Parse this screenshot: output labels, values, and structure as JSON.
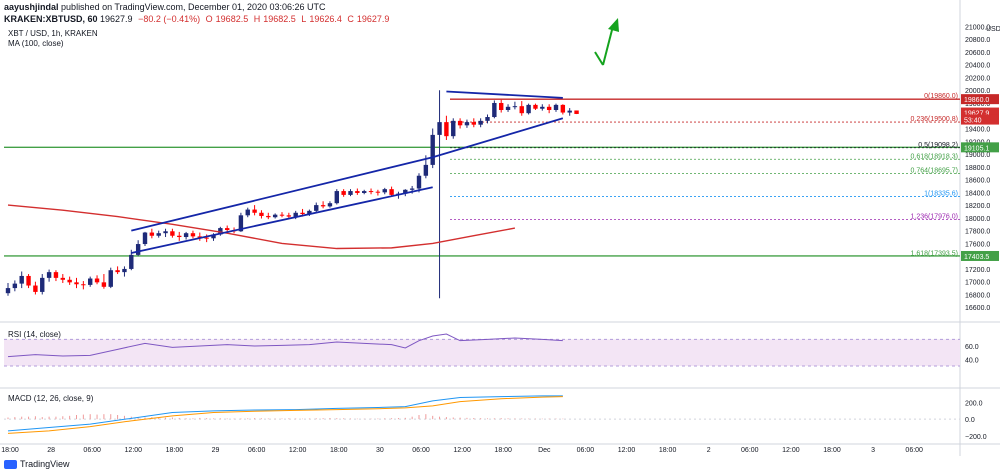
{
  "header": {
    "publisher": "aayushjindal",
    "published_text": "published on TradingView.com, December 01, 2020 03:06:26 UTC",
    "symbol": "KRAKEN:XBTUSD, 60",
    "last": "19627.9",
    "change": "−80.2 (−0.41%)",
    "ohlc": [
      "19682.5",
      "19682.5",
      "19626.4",
      "19627.9"
    ]
  },
  "legend": {
    "instrument": "XBT / USD, 1h, KRAKEN",
    "ma_label": "MA (100, close)",
    "rsi_label": "RSI (14, close)",
    "macd_label": "MACD (12, 26, close, 9)"
  },
  "footer": {
    "brand": "TradingView"
  },
  "colors": {
    "up": "#1e2a78",
    "down": "#ff0000",
    "ma": "#d32f2f",
    "trend": "#1426a8",
    "fib_red": "#c62828",
    "fib_green": "#43a047",
    "arrow": "#15a31e",
    "rsi_band": "#f3e5f5"
  },
  "price_axis": {
    "min": 16400,
    "max": 21100,
    "ticks": [
      "21000.0",
      "20800.0",
      "20600.0",
      "20400.0",
      "20200.0",
      "20000.0",
      "19800.0",
      "19600.0",
      "19400.0",
      "19200.0",
      "19000.0",
      "18800.0",
      "18600.0",
      "18400.0",
      "18200.0",
      "18000.0",
      "17800.0",
      "17600.0",
      "17400.0",
      "17200.0",
      "17000.0",
      "16800.0",
      "16600.0"
    ],
    "tick_values": [
      21000,
      20800,
      20600,
      20400,
      20200,
      20000,
      19800,
      19600,
      19400,
      19200,
      19000,
      18800,
      18600,
      18400,
      18200,
      18000,
      17800,
      17600,
      17400,
      17200,
      17000,
      16800,
      16600
    ],
    "tags": [
      {
        "text": "19860.0",
        "value": 19860,
        "color": "#c62828"
      },
      {
        "text": "19627.9",
        "value": 19650,
        "color": "#d32f2f"
      },
      {
        "text": "53:40",
        "value": 19540,
        "color": "#d32f2f"
      },
      {
        "text": "19105.1",
        "value": 19105,
        "color": "#43a047"
      },
      {
        "text": "17403.5",
        "value": 17403,
        "color": "#43a047"
      }
    ]
  },
  "rsi_axis": {
    "ticks": [
      "60.0",
      "40.0"
    ],
    "tick_values": [
      60,
      40
    ]
  },
  "macd_axis": {
    "ticks": [
      "200.0",
      "0.0",
      "−200.0"
    ],
    "tick_values": [
      200,
      0,
      -200
    ]
  },
  "fibonacci": [
    {
      "label": "0(19860.0)",
      "value": 19860,
      "color": "#c62828"
    },
    {
      "label": "0.236(19500.8)",
      "value": 19500.8,
      "color": "#c62828"
    },
    {
      "label": "0.5(19098.2)",
      "value": 19098.2,
      "color": "#131722"
    },
    {
      "label": "0.618(18918.3)",
      "value": 18918.3,
      "color": "#43a047"
    },
    {
      "label": "0.764(18695.7)",
      "value": 18695.7,
      "color": "#43a047"
    },
    {
      "label": "1(18335.6)",
      "value": 18335.6,
      "color": "#2196f3"
    },
    {
      "label": "1.236(17976.0)",
      "value": 17976,
      "color": "#9c27b0"
    },
    {
      "label": "1.618(17393.5)",
      "value": 17393.5,
      "color": "#43a047"
    }
  ],
  "horizontal_lines": [
    19860,
    19105,
    17403.5
  ],
  "time_axis": {
    "labels": [
      "18:00",
      "28",
      "06:00",
      "12:00",
      "18:00",
      "29",
      "06:00",
      "12:00",
      "18:00",
      "30",
      "06:00",
      "12:00",
      "18:00",
      "Dec",
      "06:00",
      "12:00",
      "18:00",
      "2",
      "06:00",
      "12:00",
      "18:00",
      "3",
      "06:00"
    ]
  },
  "chart_data": {
    "type": "candlestick",
    "timeframe": "1h",
    "candles": [
      {
        "o": 16820,
        "h": 16980,
        "l": 16780,
        "c": 16900
      },
      {
        "o": 16900,
        "h": 17020,
        "l": 16850,
        "c": 16970
      },
      {
        "o": 16970,
        "h": 17160,
        "l": 16900,
        "c": 17090
      },
      {
        "o": 17090,
        "h": 17120,
        "l": 16900,
        "c": 16940
      },
      {
        "o": 16940,
        "h": 17000,
        "l": 16800,
        "c": 16840
      },
      {
        "o": 16840,
        "h": 17120,
        "l": 16800,
        "c": 17060
      },
      {
        "o": 17060,
        "h": 17190,
        "l": 17000,
        "c": 17150
      },
      {
        "o": 17150,
        "h": 17180,
        "l": 17010,
        "c": 17060
      },
      {
        "o": 17060,
        "h": 17120,
        "l": 16980,
        "c": 17030
      },
      {
        "o": 17030,
        "h": 17080,
        "l": 16950,
        "c": 16990
      },
      {
        "o": 16990,
        "h": 17060,
        "l": 16900,
        "c": 16960
      },
      {
        "o": 16960,
        "h": 17010,
        "l": 16880,
        "c": 16950
      },
      {
        "o": 16950,
        "h": 17080,
        "l": 16920,
        "c": 17050
      },
      {
        "o": 17050,
        "h": 17100,
        "l": 16960,
        "c": 16990
      },
      {
        "o": 16990,
        "h": 17120,
        "l": 16890,
        "c": 16920
      },
      {
        "o": 16920,
        "h": 17220,
        "l": 16900,
        "c": 17180
      },
      {
        "o": 17180,
        "h": 17240,
        "l": 17120,
        "c": 17150
      },
      {
        "o": 17150,
        "h": 17240,
        "l": 17080,
        "c": 17200
      },
      {
        "o": 17200,
        "h": 17500,
        "l": 17180,
        "c": 17420
      },
      {
        "o": 17420,
        "h": 17650,
        "l": 17400,
        "c": 17590
      },
      {
        "o": 17590,
        "h": 17780,
        "l": 17560,
        "c": 17770
      },
      {
        "o": 17770,
        "h": 17830,
        "l": 17680,
        "c": 17720
      },
      {
        "o": 17720,
        "h": 17800,
        "l": 17690,
        "c": 17760
      },
      {
        "o": 17760,
        "h": 17830,
        "l": 17700,
        "c": 17790
      },
      {
        "o": 17790,
        "h": 17830,
        "l": 17690,
        "c": 17720
      },
      {
        "o": 17720,
        "h": 17780,
        "l": 17640,
        "c": 17700
      },
      {
        "o": 17700,
        "h": 17780,
        "l": 17660,
        "c": 17760
      },
      {
        "o": 17760,
        "h": 17800,
        "l": 17680,
        "c": 17710
      },
      {
        "o": 17710,
        "h": 17770,
        "l": 17640,
        "c": 17690
      },
      {
        "o": 17690,
        "h": 17740,
        "l": 17620,
        "c": 17680
      },
      {
        "o": 17680,
        "h": 17760,
        "l": 17640,
        "c": 17740
      },
      {
        "o": 17740,
        "h": 17860,
        "l": 17720,
        "c": 17840
      },
      {
        "o": 17840,
        "h": 17880,
        "l": 17780,
        "c": 17810
      },
      {
        "o": 17810,
        "h": 17850,
        "l": 17760,
        "c": 17790
      },
      {
        "o": 17790,
        "h": 18080,
        "l": 17780,
        "c": 18040
      },
      {
        "o": 18040,
        "h": 18160,
        "l": 18010,
        "c": 18130
      },
      {
        "o": 18130,
        "h": 18200,
        "l": 18040,
        "c": 18080
      },
      {
        "o": 18080,
        "h": 18120,
        "l": 17990,
        "c": 18030
      },
      {
        "o": 18030,
        "h": 18080,
        "l": 17980,
        "c": 18010
      },
      {
        "o": 18010,
        "h": 18070,
        "l": 17990,
        "c": 18050
      },
      {
        "o": 18050,
        "h": 18090,
        "l": 18010,
        "c": 18040
      },
      {
        "o": 18040,
        "h": 18080,
        "l": 17990,
        "c": 18020
      },
      {
        "o": 18020,
        "h": 18110,
        "l": 17980,
        "c": 18080
      },
      {
        "o": 18080,
        "h": 18140,
        "l": 18020,
        "c": 18060
      },
      {
        "o": 18060,
        "h": 18130,
        "l": 18030,
        "c": 18110
      },
      {
        "o": 18110,
        "h": 18240,
        "l": 18090,
        "c": 18200
      },
      {
        "o": 18200,
        "h": 18260,
        "l": 18150,
        "c": 18180
      },
      {
        "o": 18180,
        "h": 18260,
        "l": 18160,
        "c": 18230
      },
      {
        "o": 18230,
        "h": 18450,
        "l": 18210,
        "c": 18420
      },
      {
        "o": 18420,
        "h": 18450,
        "l": 18330,
        "c": 18360
      },
      {
        "o": 18360,
        "h": 18450,
        "l": 18340,
        "c": 18420
      },
      {
        "o": 18420,
        "h": 18460,
        "l": 18360,
        "c": 18390
      },
      {
        "o": 18390,
        "h": 18440,
        "l": 18370,
        "c": 18420
      },
      {
        "o": 18420,
        "h": 18460,
        "l": 18370,
        "c": 18410
      },
      {
        "o": 18410,
        "h": 18440,
        "l": 18350,
        "c": 18400
      },
      {
        "o": 18400,
        "h": 18470,
        "l": 18370,
        "c": 18450
      },
      {
        "o": 18450,
        "h": 18490,
        "l": 18330,
        "c": 18360
      },
      {
        "o": 18360,
        "h": 18410,
        "l": 18300,
        "c": 18380
      },
      {
        "o": 18380,
        "h": 18450,
        "l": 18340,
        "c": 18440
      },
      {
        "o": 18440,
        "h": 18500,
        "l": 18380,
        "c": 18460
      },
      {
        "o": 18460,
        "h": 18700,
        "l": 18400,
        "c": 18660
      },
      {
        "o": 18660,
        "h": 18980,
        "l": 18620,
        "c": 18830
      },
      {
        "o": 18830,
        "h": 19400,
        "l": 18780,
        "c": 19300
      },
      {
        "o": 19300,
        "h": 20000,
        "l": 16740,
        "c": 19500
      },
      {
        "o": 19500,
        "h": 19600,
        "l": 19220,
        "c": 19280
      },
      {
        "o": 19280,
        "h": 19560,
        "l": 19240,
        "c": 19520
      },
      {
        "o": 19520,
        "h": 19560,
        "l": 19400,
        "c": 19450
      },
      {
        "o": 19450,
        "h": 19540,
        "l": 19410,
        "c": 19500
      },
      {
        "o": 19500,
        "h": 19560,
        "l": 19420,
        "c": 19460
      },
      {
        "o": 19460,
        "h": 19560,
        "l": 19420,
        "c": 19520
      },
      {
        "o": 19520,
        "h": 19620,
        "l": 19480,
        "c": 19580
      },
      {
        "o": 19580,
        "h": 19840,
        "l": 19560,
        "c": 19800
      },
      {
        "o": 19800,
        "h": 19850,
        "l": 19650,
        "c": 19690
      },
      {
        "o": 19690,
        "h": 19780,
        "l": 19660,
        "c": 19740
      },
      {
        "o": 19740,
        "h": 19820,
        "l": 19700,
        "c": 19750
      },
      {
        "o": 19750,
        "h": 19830,
        "l": 19600,
        "c": 19640
      },
      {
        "o": 19640,
        "h": 19790,
        "l": 19620,
        "c": 19770
      },
      {
        "o": 19770,
        "h": 19790,
        "l": 19690,
        "c": 19710
      },
      {
        "o": 19710,
        "h": 19780,
        "l": 19680,
        "c": 19740
      },
      {
        "o": 19740,
        "h": 19780,
        "l": 19640,
        "c": 19690
      },
      {
        "o": 19690,
        "h": 19790,
        "l": 19660,
        "c": 19770
      },
      {
        "o": 19770,
        "h": 19780,
        "l": 19620,
        "c": 19650
      },
      {
        "o": 19650,
        "h": 19720,
        "l": 19600,
        "c": 19680
      },
      {
        "o": 19682.5,
        "h": 19682.5,
        "l": 19626.4,
        "c": 19627.9
      }
    ],
    "ma_100": [
      {
        "i": 0,
        "v": 18200
      },
      {
        "i": 8,
        "v": 18120
      },
      {
        "i": 16,
        "v": 18020
      },
      {
        "i": 24,
        "v": 17900
      },
      {
        "i": 32,
        "v": 17760
      },
      {
        "i": 40,
        "v": 17600
      },
      {
        "i": 48,
        "v": 17520
      },
      {
        "i": 56,
        "v": 17530
      },
      {
        "i": 62,
        "v": 17600
      },
      {
        "i": 68,
        "v": 17720
      },
      {
        "i": 74,
        "v": 17840
      }
    ],
    "rsi": [
      {
        "i": 0,
        "v": 44
      },
      {
        "i": 4,
        "v": 47
      },
      {
        "i": 8,
        "v": 45
      },
      {
        "i": 12,
        "v": 46
      },
      {
        "i": 16,
        "v": 55
      },
      {
        "i": 20,
        "v": 64
      },
      {
        "i": 24,
        "v": 58
      },
      {
        "i": 28,
        "v": 60
      },
      {
        "i": 32,
        "v": 62
      },
      {
        "i": 36,
        "v": 60
      },
      {
        "i": 40,
        "v": 61
      },
      {
        "i": 44,
        "v": 62
      },
      {
        "i": 48,
        "v": 66
      },
      {
        "i": 52,
        "v": 64
      },
      {
        "i": 56,
        "v": 62
      },
      {
        "i": 58,
        "v": 57
      },
      {
        "i": 60,
        "v": 68
      },
      {
        "i": 62,
        "v": 75
      },
      {
        "i": 64,
        "v": 78
      },
      {
        "i": 66,
        "v": 68
      },
      {
        "i": 70,
        "v": 70
      },
      {
        "i": 74,
        "v": 72
      },
      {
        "i": 78,
        "v": 70
      },
      {
        "i": 81,
        "v": 68
      }
    ],
    "macd": [
      {
        "i": 0,
        "v": -140
      },
      {
        "i": 6,
        "v": -100
      },
      {
        "i": 12,
        "v": -60
      },
      {
        "i": 18,
        "v": 10
      },
      {
        "i": 24,
        "v": 80
      },
      {
        "i": 30,
        "v": 100
      },
      {
        "i": 36,
        "v": 110
      },
      {
        "i": 42,
        "v": 115
      },
      {
        "i": 48,
        "v": 130
      },
      {
        "i": 54,
        "v": 140
      },
      {
        "i": 58,
        "v": 150
      },
      {
        "i": 62,
        "v": 220
      },
      {
        "i": 66,
        "v": 260
      },
      {
        "i": 72,
        "v": 270
      },
      {
        "i": 78,
        "v": 280
      },
      {
        "i": 81,
        "v": 280
      }
    ],
    "macd_signal": [
      {
        "i": 0,
        "v": -170
      },
      {
        "i": 6,
        "v": -140
      },
      {
        "i": 12,
        "v": -90
      },
      {
        "i": 18,
        "v": -20
      },
      {
        "i": 24,
        "v": 40
      },
      {
        "i": 30,
        "v": 80
      },
      {
        "i": 36,
        "v": 95
      },
      {
        "i": 42,
        "v": 105
      },
      {
        "i": 48,
        "v": 115
      },
      {
        "i": 54,
        "v": 125
      },
      {
        "i": 58,
        "v": 135
      },
      {
        "i": 62,
        "v": 160
      },
      {
        "i": 66,
        "v": 210
      },
      {
        "i": 72,
        "v": 245
      },
      {
        "i": 78,
        "v": 265
      },
      {
        "i": 81,
        "v": 270
      }
    ],
    "macd_hist": [
      20,
      25,
      30,
      30,
      35,
      25,
      30,
      30,
      35,
      40,
      50,
      55,
      60,
      55,
      60,
      60,
      50,
      40,
      30,
      25,
      20,
      25,
      20,
      18,
      20,
      15,
      10,
      10,
      15,
      12,
      8,
      10,
      8,
      6,
      8,
      10,
      12,
      10,
      8,
      6,
      8,
      10,
      8,
      6,
      8,
      10,
      12,
      14,
      12,
      10,
      8,
      6,
      5,
      6,
      8,
      10,
      12,
      14,
      16,
      30,
      50,
      60,
      40,
      30,
      25,
      20,
      18,
      16,
      14,
      12,
      10,
      10,
      12,
      10,
      8,
      8,
      6,
      6,
      6,
      6,
      6,
      6
    ],
    "trend_lines": [
      {
        "name": "",
        "from": {
          "i": 18,
          "v": 17450
        },
        "to": {
          "i": 62,
          "v": 18480
        }
      },
      {
        "name": "",
        "from": {
          "i": 18,
          "v": 17800
        },
        "to": {
          "i": 62,
          "v": 18950
        }
      },
      {
        "name": "",
        "from": {
          "i": 62,
          "v": 18950
        },
        "to": {
          "i": 81,
          "v": 19560
        }
      },
      {
        "name": "",
        "from": {
          "i": 64,
          "v": 19980
        },
        "to": {
          "i": 81,
          "v": 19880
        }
      }
    ]
  }
}
